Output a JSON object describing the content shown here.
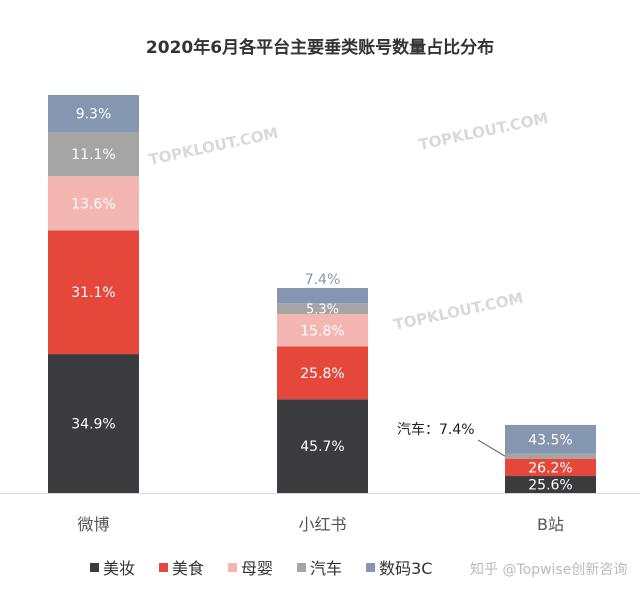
{
  "chart_data": {
    "type": "bar",
    "stacked": true,
    "title": "2020年6月各平台主要垂类账号数量占比分布",
    "categories": [
      "微博",
      "小红书",
      "B站"
    ],
    "relative_bar_height": [
      1.0,
      0.515,
      0.171
    ],
    "series": [
      {
        "name": "美妆",
        "color": "#3a3a3f",
        "values": [
          34.9,
          45.7,
          25.6
        ],
        "labels": [
          "34.9%",
          "45.7%",
          "25.6%"
        ]
      },
      {
        "name": "美食",
        "color": "#e5473b",
        "values": [
          31.1,
          25.8,
          26.2
        ],
        "labels": [
          "31.1%",
          "25.8%",
          "26.2%"
        ]
      },
      {
        "name": "母婴",
        "color": "#f4b6b1",
        "values": [
          13.6,
          15.8,
          0
        ],
        "labels": [
          "13.6%",
          "15.8%",
          ""
        ]
      },
      {
        "name": "汽车",
        "color": "#a5a5a5",
        "values": [
          11.1,
          5.3,
          7.4
        ],
        "labels": [
          "11.1%",
          "5.3%",
          ""
        ]
      },
      {
        "name": "数码3C",
        "color": "#8496b0",
        "values": [
          9.3,
          7.4,
          43.5
        ],
        "labels": [
          "9.3%",
          "7.4%",
          "43.5%"
        ]
      }
    ],
    "annotations": [
      {
        "category": "B站",
        "series": "汽车",
        "text": "汽车：7.4%"
      }
    ],
    "legend_position": "bottom",
    "grid": false,
    "watermarks": [
      "TOPKLOUT.COM",
      "知乎 @Topwise创新咨询"
    ]
  }
}
